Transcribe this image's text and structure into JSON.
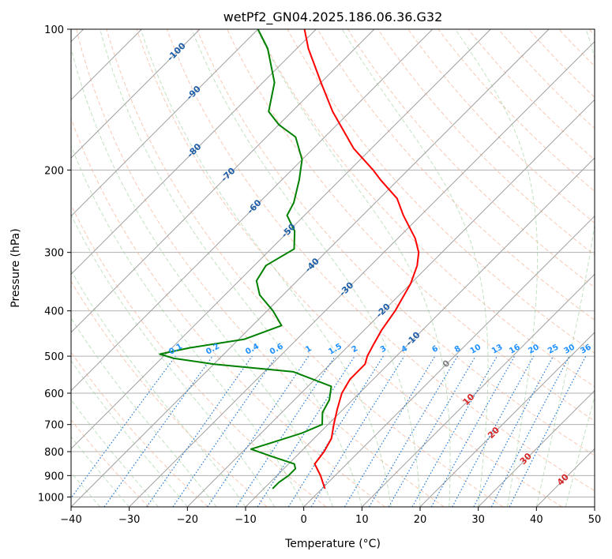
{
  "chart_data": {
    "type": "line",
    "subtype": "skew-t log-p diagram",
    "title": "wetPf2_GN04.2025.186.06.36.G32",
    "xlabel": "Temperature (°C)",
    "ylabel": "Pressure (hPa)",
    "xlim": [
      -40,
      50
    ],
    "ylim": [
      1050,
      100
    ],
    "y_scale": "log",
    "grid": true,
    "x_ticks": [
      -40,
      -30,
      -20,
      -10,
      0,
      10,
      20,
      30,
      40,
      50
    ],
    "x_tick_labels": [
      "−40",
      "−30",
      "−20",
      "−10",
      "0",
      "10",
      "20",
      "30",
      "40",
      "50"
    ],
    "y_ticks": [
      1000,
      900,
      800,
      700,
      600,
      500,
      400,
      300,
      200,
      100
    ],
    "y_tick_labels": [
      "1000",
      "900",
      "800",
      "700",
      "600",
      "500",
      "400",
      "300",
      "200",
      "100"
    ],
    "series": [
      {
        "role": "temperature",
        "color": "#ff0000",
        "pressure": [
          960,
          900,
          850,
          800,
          750,
          700,
          650,
          600,
          560,
          520,
          500,
          470,
          440,
          400,
          350,
          320,
          300,
          280,
          250,
          230,
          210,
          200,
          180,
          150,
          130,
          110,
          100
        ],
        "temperature": [
          0.5,
          -2.5,
          -5.5,
          -6,
          -7,
          -9,
          -11,
          -13,
          -14,
          -14,
          -15,
          -16,
          -17,
          -18,
          -20,
          -22,
          -24,
          -27,
          -33,
          -37,
          -43,
          -46,
          -53,
          -63,
          -70,
          -78,
          -82
        ]
      },
      {
        "role": "dewpoint",
        "color": "#008000",
        "pressure": [
          960,
          930,
          900,
          870,
          850,
          820,
          790,
          760,
          730,
          700,
          660,
          620,
          580,
          540,
          520,
          505,
          495,
          480,
          460,
          430,
          400,
          370,
          345,
          320,
          295,
          270,
          250,
          235,
          210,
          190,
          170,
          160,
          150,
          130,
          110,
          100
        ],
        "dewpoint": [
          -8.5,
          -8.5,
          -8,
          -8,
          -9,
          -14,
          -19,
          -16,
          -13,
          -11,
          -13,
          -14,
          -16,
          -25,
          -40,
          -48,
          -51,
          -47,
          -39,
          -35,
          -39,
          -44,
          -47,
          -48,
          -46,
          -49,
          -53,
          -54,
          -57,
          -60,
          -65,
          -70,
          -74,
          -78,
          -85,
          -90
        ]
      }
    ],
    "isotherm_labels": [
      "-100",
      "-90",
      "-80",
      "-70",
      "-60",
      "-50",
      "-40",
      "-30",
      "-20",
      "-10",
      "0",
      "10",
      "20",
      "30",
      "40"
    ],
    "isotherm_label_values": [
      -100,
      -90,
      -80,
      -70,
      -60,
      -50,
      -40,
      -30,
      -20,
      -10,
      0,
      10,
      20,
      30,
      40
    ],
    "mixing_ratio_labels": [
      "0.1",
      "0.2",
      "0.4",
      "0.6",
      "1",
      "1.5",
      "2",
      "3",
      "4",
      "6",
      "8",
      "10",
      "13",
      "16",
      "20",
      "25",
      "30",
      "36"
    ],
    "mixing_ratio_values": [
      0.1,
      0.2,
      0.4,
      0.6,
      1,
      1.5,
      2,
      3,
      4,
      6,
      8,
      10,
      13,
      16,
      20,
      25,
      30,
      36
    ],
    "colors": {
      "temperature": "#ff0000",
      "dewpoint": "#008000",
      "skewed_isotherms": "#a0a0a0",
      "dry_adiabats": "#f4a582",
      "moist_adiabats": "#8fc98f",
      "mixing_ratio": "#1f77d4",
      "isotherm_label_cold": "#1f5fa8",
      "isotherm_label_warm": "#d62728",
      "isotherm_label_zero": "#808080",
      "mixing_ratio_label": "#1e90ff"
    }
  }
}
